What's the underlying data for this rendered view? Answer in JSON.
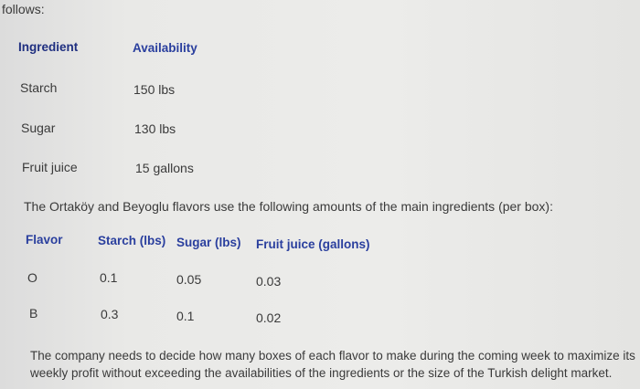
{
  "intro": "follows:",
  "availability": {
    "headers": [
      "Ingredient",
      "Availability"
    ],
    "rows": [
      [
        "Starch",
        "150 lbs"
      ],
      [
        "Sugar",
        "130 lbs"
      ],
      [
        "Fruit juice",
        "15 gallons"
      ]
    ]
  },
  "usage_intro": "The Ortaköy and Beyoglu flavors use the following amounts of the main ingredients (per box):",
  "usage": {
    "headers": [
      "Flavor",
      "Starch (lbs)",
      "Sugar (lbs)",
      "Fruit juice (gallons)"
    ],
    "rows": [
      [
        "O",
        "0.1",
        "0.05",
        "0.03"
      ],
      [
        "B",
        "0.3",
        "0.1",
        "0.02"
      ]
    ]
  },
  "conclusion": [
    "The company needs to decide how many boxes of each flavor to make during the coming week to maximize its",
    "weekly profit without exceeding the availabilities of the ingredients or the size of the Turkish delight market."
  ],
  "colors": {
    "header": "#2a3f9e"
  }
}
